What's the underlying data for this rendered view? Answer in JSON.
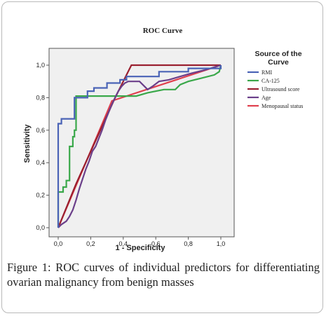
{
  "chart_data": {
    "type": "line",
    "title": "ROC Curve",
    "xlabel": "1 - Specificity",
    "ylabel": "Sensitivity",
    "xlim": [
      0,
      1
    ],
    "ylim": [
      0,
      1
    ],
    "xticks": [
      "0,0",
      "0,2",
      "0,4",
      "0,6",
      "0,8",
      "1,0"
    ],
    "yticks": [
      "0,0",
      "0,2",
      "0,4",
      "0,6",
      "0,8",
      "1,0"
    ],
    "xtick_values": [
      0,
      0.2,
      0.4,
      0.6,
      0.8,
      1.0
    ],
    "ytick_values": [
      0,
      0.2,
      0.4,
      0.6,
      0.8,
      1.0
    ],
    "grid": false,
    "legend_title": "Source of the Curve",
    "legend_placement": "right",
    "plot_background": "#f0f0f0",
    "series": [
      {
        "name": "RMI",
        "color": "#4a63b6",
        "step": true,
        "points": [
          [
            0,
            0
          ],
          [
            0,
            0.64
          ],
          [
            0.02,
            0.64
          ],
          [
            0.02,
            0.67
          ],
          [
            0.1,
            0.67
          ],
          [
            0.1,
            0.8
          ],
          [
            0.18,
            0.8
          ],
          [
            0.18,
            0.84
          ],
          [
            0.22,
            0.84
          ],
          [
            0.22,
            0.86
          ],
          [
            0.3,
            0.86
          ],
          [
            0.3,
            0.89
          ],
          [
            0.38,
            0.89
          ],
          [
            0.38,
            0.91
          ],
          [
            0.42,
            0.91
          ],
          [
            0.42,
            0.93
          ],
          [
            0.62,
            0.93
          ],
          [
            0.62,
            0.96
          ],
          [
            0.8,
            0.96
          ],
          [
            0.8,
            0.98
          ],
          [
            1,
            0.98
          ],
          [
            1,
            1
          ]
        ]
      },
      {
        "name": "CA-125",
        "color": "#3aa84a",
        "step": true,
        "points": [
          [
            0,
            0
          ],
          [
            0,
            0.22
          ],
          [
            0.03,
            0.22
          ],
          [
            0.03,
            0.25
          ],
          [
            0.05,
            0.25
          ],
          [
            0.05,
            0.29
          ],
          [
            0.07,
            0.29
          ],
          [
            0.07,
            0.5
          ],
          [
            0.09,
            0.5
          ],
          [
            0.09,
            0.56
          ],
          [
            0.1,
            0.56
          ],
          [
            0.1,
            0.6
          ],
          [
            0.11,
            0.6
          ],
          [
            0.11,
            0.81
          ],
          [
            0.48,
            0.81
          ],
          [
            0.55,
            0.83
          ],
          [
            0.65,
            0.85
          ],
          [
            0.72,
            0.85
          ],
          [
            0.75,
            0.88
          ],
          [
            0.8,
            0.9
          ],
          [
            0.88,
            0.92
          ],
          [
            0.96,
            0.94
          ],
          [
            0.99,
            0.96
          ],
          [
            1,
            1
          ]
        ]
      },
      {
        "name": "Ultrasound score",
        "color": "#9a2030",
        "step": false,
        "points": [
          [
            0,
            0
          ],
          [
            0.11,
            0.27
          ],
          [
            0.35,
            0.8
          ],
          [
            0.45,
            1
          ],
          [
            1,
            1
          ]
        ]
      },
      {
        "name": "Age",
        "color": "#6b3f8a",
        "step": false,
        "points": [
          [
            0,
            0
          ],
          [
            0.02,
            0.02
          ],
          [
            0.05,
            0.04
          ],
          [
            0.07,
            0.07
          ],
          [
            0.09,
            0.11
          ],
          [
            0.11,
            0.17
          ],
          [
            0.13,
            0.24
          ],
          [
            0.15,
            0.3
          ],
          [
            0.17,
            0.36
          ],
          [
            0.19,
            0.41
          ],
          [
            0.21,
            0.47
          ],
          [
            0.23,
            0.5
          ],
          [
            0.25,
            0.55
          ],
          [
            0.27,
            0.6
          ],
          [
            0.29,
            0.66
          ],
          [
            0.31,
            0.71
          ],
          [
            0.33,
            0.76
          ],
          [
            0.35,
            0.8
          ],
          [
            0.37,
            0.84
          ],
          [
            0.39,
            0.87
          ],
          [
            0.41,
            0.89
          ],
          [
            0.43,
            0.9
          ],
          [
            0.5,
            0.9
          ],
          [
            0.52,
            0.88
          ],
          [
            0.55,
            0.85
          ],
          [
            0.58,
            0.87
          ],
          [
            0.62,
            0.9
          ],
          [
            0.68,
            0.91
          ],
          [
            0.75,
            0.93
          ],
          [
            0.82,
            0.95
          ],
          [
            0.9,
            0.97
          ],
          [
            1,
            1
          ]
        ]
      },
      {
        "name": "Menopausal status",
        "color": "#e0404e",
        "step": false,
        "points": [
          [
            0,
            0
          ],
          [
            0.33,
            0.78
          ],
          [
            1,
            1
          ]
        ]
      }
    ]
  },
  "caption": {
    "label": "Figure 1:",
    "text": "ROC curves of individual predictors for differentiating ovarian malignancy from benign masses"
  }
}
